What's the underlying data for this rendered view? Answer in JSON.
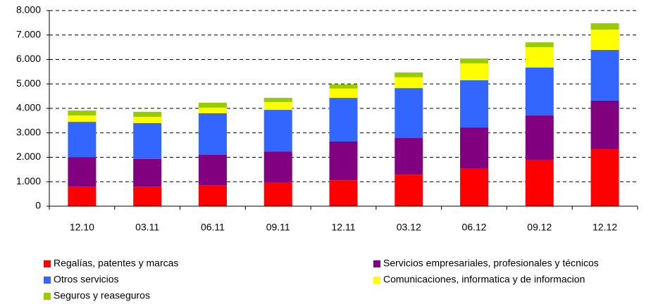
{
  "chart_data": {
    "type": "stacked-bar",
    "categories": [
      "12.10",
      "03.11",
      "06.11",
      "09.11",
      "12.11",
      "03.12",
      "06.12",
      "09.12",
      "12.12"
    ],
    "series": [
      {
        "name": "Regalías, patentes y marcas",
        "color": "#ff0000",
        "values": [
          800,
          800,
          860,
          980,
          1060,
          1290,
          1530,
          1900,
          2330
        ]
      },
      {
        "name": "Servicios empresariales, profesionales y técnicos",
        "color": "#800080",
        "values": [
          1200,
          1130,
          1240,
          1260,
          1590,
          1500,
          1690,
          1810,
          1990
        ]
      },
      {
        "name": "Otros servicios",
        "color": "#3366ff",
        "values": [
          1450,
          1470,
          1700,
          1700,
          1780,
          2040,
          1930,
          1960,
          2070
        ]
      },
      {
        "name": "Comunicaciones, informatica y de informacion",
        "color": "#ffff00",
        "values": [
          260,
          250,
          230,
          320,
          380,
          440,
          690,
          830,
          830
        ]
      },
      {
        "name": "Seguros y reaseguros",
        "color": "#99cc00",
        "values": [
          200,
          210,
          200,
          170,
          170,
          200,
          200,
          200,
          260
        ]
      }
    ],
    "ylim": [
      0,
      8000
    ],
    "yticks": [
      0,
      {
        "value": 1000,
        "label": "1.000"
      },
      {
        "value": 2000,
        "label": "2.000"
      },
      {
        "value": 3000,
        "label": "3.000"
      },
      {
        "value": 4000,
        "label": "4.000"
      },
      {
        "value": 5000,
        "label": "5.000"
      },
      {
        "value": 6000,
        "label": "6.000"
      },
      {
        "value": 7000,
        "label": "7.000"
      },
      {
        "value": 8000,
        "label": "8.000"
      }
    ],
    "grid": true
  }
}
